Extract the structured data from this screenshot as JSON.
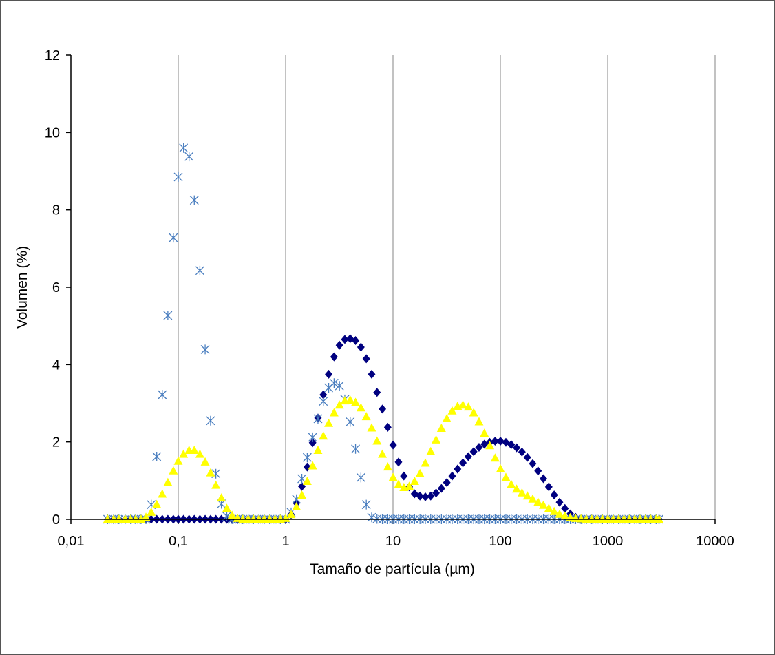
{
  "chart_data": {
    "type": "scatter",
    "title": "",
    "xlabel": "Tamaño de partícula (µm)",
    "ylabel": "Volumen (%)",
    "x_scale": "log",
    "xlim": [
      0.01,
      10000
    ],
    "ylim": [
      0,
      12
    ],
    "x_ticks": [
      0.01,
      0.1,
      1,
      10,
      100,
      1000,
      10000
    ],
    "x_tick_labels": [
      "0,01",
      "0,1",
      "1",
      "10",
      "100",
      "1000",
      "10000"
    ],
    "y_ticks": [
      0,
      2,
      4,
      6,
      8,
      10,
      12
    ],
    "y_tick_labels": [
      "0",
      "2",
      "4",
      "6",
      "8",
      "10",
      "12"
    ],
    "grid": "vertical major gridlines",
    "legend": "none",
    "series": [
      {
        "marker": "diamond",
        "color": "#000080",
        "x": [
          0.022,
          0.025,
          0.028,
          0.032,
          0.036,
          0.04,
          0.045,
          0.05,
          0.056,
          0.063,
          0.071,
          0.08,
          0.09,
          0.1,
          0.112,
          0.126,
          0.141,
          0.159,
          0.178,
          0.2,
          0.224,
          0.252,
          0.283,
          0.317,
          0.356,
          0.399,
          0.448,
          0.502,
          0.564,
          0.632,
          0.71,
          0.796,
          0.893,
          1.002,
          1.125,
          1.262,
          1.416,
          1.589,
          1.783,
          2.0,
          2.244,
          2.518,
          2.825,
          3.17,
          3.557,
          3.991,
          4.477,
          5.024,
          5.637,
          6.325,
          7.096,
          7.962,
          8.934,
          10.02,
          11.25,
          12.62,
          14.16,
          15.89,
          17.83,
          20.0,
          22.44,
          25.18,
          28.25,
          31.7,
          35.57,
          39.91,
          44.77,
          50.24,
          56.37,
          63.25,
          70.96,
          79.62,
          89.34,
          100.2,
          112.5,
          126.2,
          141.6,
          158.9,
          178.3,
          200.0,
          224.4,
          251.8,
          282.5,
          317.0,
          355.7,
          399.1,
          447.7,
          502.4,
          563.7,
          632.5,
          709.6,
          796.2,
          893.4,
          1002,
          1125,
          1262,
          1416,
          1589,
          1783,
          2000,
          2244,
          2518,
          2825,
          3000
        ],
        "y": [
          0,
          0,
          0,
          0,
          0,
          0,
          0,
          0,
          0,
          0,
          0,
          0,
          0,
          0,
          0,
          0,
          0,
          0,
          0,
          0,
          0,
          0,
          0,
          0,
          0,
          0,
          0,
          0,
          0,
          0,
          0,
          0,
          0,
          0,
          0.12,
          0.42,
          0.85,
          1.35,
          1.98,
          2.62,
          3.22,
          3.75,
          4.2,
          4.5,
          4.65,
          4.67,
          4.62,
          4.45,
          4.15,
          3.75,
          3.28,
          2.85,
          2.38,
          1.92,
          1.48,
          1.12,
          0.84,
          0.66,
          0.6,
          0.58,
          0.6,
          0.68,
          0.8,
          0.95,
          1.12,
          1.3,
          1.46,
          1.62,
          1.75,
          1.86,
          1.94,
          1.99,
          2.02,
          2.02,
          1.99,
          1.93,
          1.85,
          1.74,
          1.6,
          1.44,
          1.25,
          1.05,
          0.84,
          0.63,
          0.44,
          0.28,
          0.14,
          0.05,
          0.01,
          0,
          0,
          0,
          0,
          0,
          0,
          0,
          0,
          0,
          0,
          0,
          0,
          0,
          0,
          0
        ]
      },
      {
        "marker": "asterisk",
        "color": "#4a7ebf",
        "x": [
          0.022,
          0.025,
          0.028,
          0.032,
          0.036,
          0.04,
          0.045,
          0.05,
          0.056,
          0.063,
          0.071,
          0.08,
          0.09,
          0.1,
          0.112,
          0.126,
          0.141,
          0.159,
          0.178,
          0.2,
          0.224,
          0.252,
          0.283,
          0.317,
          0.356,
          0.399,
          0.448,
          0.502,
          0.564,
          0.632,
          0.71,
          0.796,
          0.893,
          1.002,
          1.125,
          1.262,
          1.416,
          1.589,
          1.783,
          2.0,
          2.244,
          2.518,
          2.825,
          3.17,
          3.557,
          3.991,
          4.477,
          5.024,
          5.637,
          6.325,
          7.096,
          7.962,
          8.934,
          10.02,
          11.25,
          12.62,
          14.16,
          15.89,
          17.83,
          20.0,
          22.44,
          25.18,
          28.25,
          31.7,
          35.57,
          39.91,
          44.77,
          50.24,
          56.37,
          63.25,
          70.96,
          79.62,
          89.34,
          100.2,
          112.5,
          126.2,
          141.6,
          158.9,
          178.3,
          200.0,
          224.4,
          251.8,
          282.5,
          317.0,
          355.7,
          399.1,
          447.7,
          502.4,
          563.7,
          632.5,
          709.6,
          796.2,
          893.4,
          1002,
          1125,
          1262,
          1416,
          1589,
          1783,
          2000,
          2244,
          2518,
          2825,
          3000
        ],
        "y": [
          0,
          0,
          0,
          0,
          0,
          0,
          0,
          0,
          0.38,
          1.62,
          3.22,
          5.27,
          7.28,
          8.85,
          9.6,
          9.38,
          8.25,
          6.43,
          4.39,
          2.55,
          1.18,
          0.4,
          0.08,
          0,
          0,
          0,
          0,
          0,
          0,
          0,
          0,
          0,
          0,
          0,
          0.18,
          0.52,
          1.05,
          1.6,
          2.12,
          2.6,
          3.05,
          3.4,
          3.52,
          3.45,
          3.1,
          2.52,
          1.82,
          1.08,
          0.38,
          0.05,
          0.01,
          0,
          0,
          0,
          0,
          0,
          0,
          0,
          0,
          0,
          0,
          0,
          0,
          0,
          0,
          0,
          0,
          0,
          0,
          0,
          0,
          0,
          0,
          0,
          0,
          0,
          0,
          0,
          0,
          0,
          0,
          0,
          0,
          0,
          0,
          0,
          0,
          0,
          0,
          0,
          0,
          0,
          0,
          0,
          0,
          0,
          0,
          0,
          0,
          0,
          0,
          0,
          0,
          0
        ]
      },
      {
        "marker": "triangle",
        "color": "#ffff00",
        "x": [
          0.022,
          0.025,
          0.028,
          0.032,
          0.036,
          0.04,
          0.045,
          0.05,
          0.056,
          0.063,
          0.071,
          0.08,
          0.09,
          0.1,
          0.112,
          0.126,
          0.141,
          0.159,
          0.178,
          0.2,
          0.224,
          0.252,
          0.283,
          0.317,
          0.356,
          0.399,
          0.448,
          0.502,
          0.564,
          0.632,
          0.71,
          0.796,
          0.893,
          1.002,
          1.125,
          1.262,
          1.416,
          1.589,
          1.783,
          2.0,
          2.244,
          2.518,
          2.825,
          3.17,
          3.557,
          3.991,
          4.477,
          5.024,
          5.637,
          6.325,
          7.096,
          7.962,
          8.934,
          10.02,
          11.25,
          12.62,
          14.16,
          15.89,
          17.83,
          20.0,
          22.44,
          25.18,
          28.25,
          31.7,
          35.57,
          39.91,
          44.77,
          50.24,
          56.37,
          63.25,
          70.96,
          79.62,
          89.34,
          100.2,
          112.5,
          126.2,
          141.6,
          158.9,
          178.3,
          200.0,
          224.4,
          251.8,
          282.5,
          317.0,
          355.7,
          399.1,
          447.7,
          502.4,
          563.7,
          632.5,
          709.6,
          796.2,
          893.4,
          1002,
          1125,
          1262,
          1416,
          1589,
          1783,
          2000,
          2244,
          2518,
          2825,
          3000
        ],
        "y": [
          0,
          0,
          0,
          0,
          0,
          0,
          0,
          0.05,
          0.18,
          0.38,
          0.65,
          0.95,
          1.25,
          1.5,
          1.68,
          1.78,
          1.78,
          1.68,
          1.48,
          1.2,
          0.88,
          0.55,
          0.28,
          0.1,
          0.02,
          0,
          0,
          0,
          0,
          0,
          0,
          0,
          0,
          0.02,
          0.12,
          0.32,
          0.62,
          0.98,
          1.38,
          1.78,
          2.15,
          2.48,
          2.75,
          2.95,
          3.06,
          3.08,
          3.02,
          2.88,
          2.65,
          2.36,
          2.02,
          1.68,
          1.35,
          1.08,
          0.9,
          0.82,
          0.85,
          0.98,
          1.18,
          1.45,
          1.75,
          2.05,
          2.35,
          2.6,
          2.8,
          2.92,
          2.95,
          2.9,
          2.75,
          2.52,
          2.22,
          1.9,
          1.58,
          1.3,
          1.08,
          0.9,
          0.78,
          0.68,
          0.6,
          0.52,
          0.44,
          0.36,
          0.28,
          0.2,
          0.13,
          0.08,
          0.04,
          0.02,
          0.01,
          0,
          0,
          0,
          0,
          0,
          0,
          0,
          0,
          0,
          0,
          0,
          0,
          0,
          0,
          0
        ]
      }
    ]
  }
}
